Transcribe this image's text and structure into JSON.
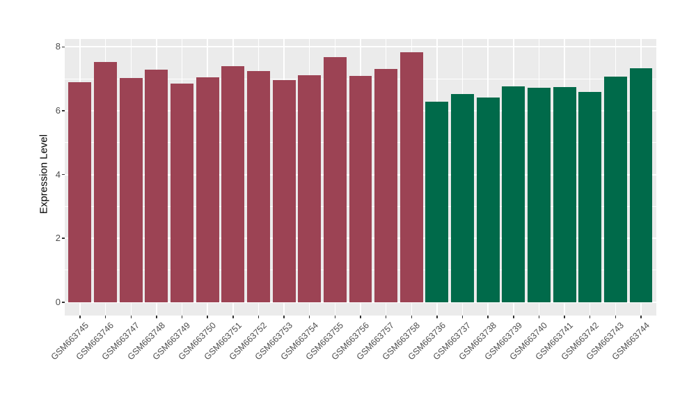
{
  "chart_data": {
    "type": "bar",
    "title": "",
    "xlabel": "",
    "ylabel": "Expression Level",
    "ylim": [
      -0.42,
      8.25
    ],
    "yticks": [
      0,
      2,
      4,
      6,
      8
    ],
    "yminor_ticks": [
      1,
      3,
      5,
      7
    ],
    "grid": "on",
    "legend": "none",
    "panel_background": "#EBEBEB",
    "gridline_color": "#FFFFFF",
    "bar_group_colors": {
      "group_a": "#9C4354",
      "group_b": "#006A4A"
    },
    "series": [
      {
        "name": "group_a",
        "color": "#9C4354",
        "categories": [
          "GSM663745",
          "GSM663746",
          "GSM663747",
          "GSM663748",
          "GSM663749",
          "GSM663750",
          "GSM663751",
          "GSM663752",
          "GSM663753",
          "GSM663754",
          "GSM663755",
          "GSM663756",
          "GSM663757",
          "GSM663758"
        ],
        "values": [
          6.9,
          7.52,
          7.02,
          7.29,
          6.86,
          7.04,
          7.4,
          7.24,
          6.97,
          7.12,
          7.69,
          7.1,
          7.31,
          7.84
        ]
      },
      {
        "name": "group_b",
        "color": "#006A4A",
        "categories": [
          "GSM663736",
          "GSM663737",
          "GSM663738",
          "GSM663739",
          "GSM663740",
          "GSM663741",
          "GSM663742",
          "GSM663743",
          "GSM663744"
        ],
        "values": [
          6.28,
          6.53,
          6.42,
          6.77,
          6.73,
          6.74,
          6.58,
          7.07,
          7.34
        ]
      }
    ]
  }
}
